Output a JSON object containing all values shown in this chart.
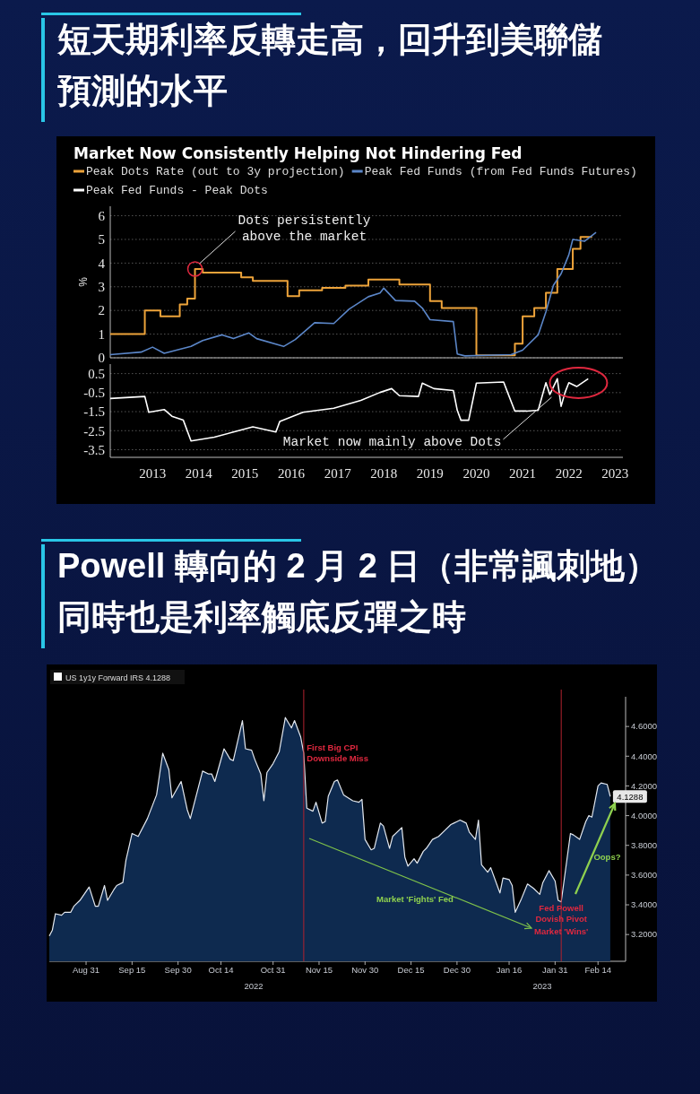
{
  "chart_data": [
    {
      "type": "step",
      "title": "短天期利率反轉走高，回升到美聯儲預測的水平",
      "subtitle": "Market Now Consistently Helping Not Hindering Fed",
      "ylabel": "%",
      "xlim": [
        "2012-08",
        "2023-09"
      ],
      "ylim": [
        0,
        6.4
      ],
      "yticks": [
        0,
        1,
        2,
        3,
        4,
        5,
        6
      ],
      "grid": "y",
      "legend": "top",
      "tick_labels": "y",
      "series": [
        {
          "name": "Peak Dots Rate (out to 3y projection)",
          "type": "step",
          "color": "#eda33a",
          "x": [
            "2012-08",
            "2013-05",
            "2013-09",
            "2014-02",
            "2014-04",
            "2014-06",
            "2014-08",
            "2015-06",
            "2015-09",
            "2016-06",
            "2016-09",
            "2017-03",
            "2017-09",
            "2018-03",
            "2018-11",
            "2019-07",
            "2019-10",
            "2020-07",
            "2021-05",
            "2021-07",
            "2021-10",
            "2022-01",
            "2022-04",
            "2022-08",
            "2022-10",
            "2023-01"
          ],
          "values": [
            1.0,
            2.0,
            1.75,
            2.25,
            2.5,
            3.75,
            3.6,
            3.4,
            3.25,
            2.6,
            2.85,
            2.95,
            3.05,
            3.3,
            3.1,
            2.4,
            2.1,
            0.1,
            0.6,
            1.75,
            2.1,
            2.75,
            3.75,
            4.6,
            5.1,
            5.1
          ]
        },
        {
          "name": "Peak Fed Funds (from Fed Funds Futures)",
          "type": "line",
          "color": "#5b86c8",
          "x": [
            "2012-08",
            "2013-04",
            "2013-07",
            "2013-10",
            "2014-05",
            "2014-08",
            "2015-01",
            "2015-04",
            "2015-08",
            "2015-10",
            "2016-05",
            "2016-08",
            "2017-01",
            "2017-06",
            "2017-10",
            "2018-03",
            "2018-06",
            "2018-07",
            "2018-10",
            "2019-03",
            "2019-05",
            "2019-07",
            "2020-01",
            "2020-02",
            "2020-04",
            "2021-04",
            "2021-07",
            "2021-11",
            "2022-01",
            "2022-03",
            "2022-05",
            "2022-07",
            "2022-08",
            "2022-11",
            "2023-02"
          ],
          "values": [
            0.13,
            0.24,
            0.45,
            0.19,
            0.48,
            0.73,
            0.97,
            0.81,
            1.05,
            0.81,
            0.48,
            0.77,
            1.48,
            1.45,
            2.06,
            2.58,
            2.74,
            2.94,
            2.42,
            2.39,
            2.1,
            1.61,
            1.53,
            0.16,
            0.08,
            0.13,
            0.32,
            0.97,
            1.94,
            3.06,
            3.55,
            4.35,
            5.0,
            4.92,
            5.3
          ]
        }
      ],
      "annotations": [
        {
          "text": "Dots persistently above the market",
          "x": "2014-06",
          "y": 3.75
        }
      ]
    },
    {
      "type": "line",
      "xlim": [
        "2012-08",
        "2023-09"
      ],
      "xticks": [
        {
          "value": "2013-07",
          "label": "2013"
        },
        {
          "value": "2014-07",
          "label": "2014"
        },
        {
          "value": "2015-07",
          "label": "2015"
        },
        {
          "value": "2016-07",
          "label": "2016"
        },
        {
          "value": "2017-07",
          "label": "2017"
        },
        {
          "value": "2018-07",
          "label": "2018"
        },
        {
          "value": "2019-07",
          "label": "2019"
        },
        {
          "value": "2020-07",
          "label": "2020"
        },
        {
          "value": "2021-07",
          "label": "2021"
        },
        {
          "value": "2022-07",
          "label": "2022"
        },
        {
          "value": "2023-07",
          "label": "2023"
        }
      ],
      "ylim": [
        -3.9,
        1.0
      ],
      "yticks": [
        0.5,
        -0.5,
        -1.5,
        -2.5,
        -3.5
      ],
      "grid": "y",
      "legend": "top",
      "series": [
        {
          "name": "Peak Fed Funds - Peak Dots",
          "color": "#ffffff",
          "x": [
            "2012-08",
            "2013-05",
            "2013-06",
            "2013-10",
            "2013-12",
            "2014-03",
            "2014-05",
            "2014-11",
            "2015-04",
            "2015-09",
            "2016-03",
            "2016-04",
            "2016-10",
            "2017-06",
            "2018-01",
            "2018-06",
            "2018-09",
            "2018-11",
            "2019-04",
            "2019-05",
            "2019-08",
            "2020-01",
            "2020-02",
            "2020-03",
            "2020-05",
            "2020-07",
            "2021-02",
            "2021-03",
            "2021-05",
            "2021-08",
            "2021-11",
            "2022-01",
            "2022-02",
            "2022-04",
            "2022-05",
            "2022-06",
            "2022-07",
            "2022-09",
            "2022-12"
          ],
          "values": [
            -0.81,
            -0.7,
            -1.53,
            -1.39,
            -1.74,
            -1.95,
            -3.04,
            -2.84,
            -2.57,
            -2.3,
            -2.57,
            -2.01,
            -1.53,
            -1.32,
            -0.91,
            -0.49,
            -0.29,
            -0.66,
            -0.7,
            0.0,
            -0.29,
            -0.39,
            -1.43,
            -1.95,
            -1.95,
            0.0,
            0.06,
            -0.43,
            -1.47,
            -1.47,
            -1.43,
            0.02,
            -0.6,
            0.23,
            -1.22,
            -0.49,
            0.02,
            -0.18,
            0.23
          ]
        }
      ],
      "annotations": [
        {
          "text": "Market now mainly above Dots",
          "x": "2022-03",
          "y": -0.6
        }
      ]
    },
    {
      "type": "area",
      "title": "Powell 轉向的 2 月 2 日（非常諷刺地）同時也是利率觸底反彈之時",
      "xlim": [
        "2022-08-19",
        "2023-02-23"
      ],
      "xticks": [
        {
          "value": "2022-08-31",
          "label": "Aug 31"
        },
        {
          "value": "2022-09-15",
          "label": "Sep 15"
        },
        {
          "value": "2022-09-30",
          "label": "Sep 30"
        },
        {
          "value": "2022-10-14",
          "label": "Oct 14"
        },
        {
          "value": "2022-10-31",
          "label": "Oct 31"
        },
        {
          "value": "2022-11-15",
          "label": "Nov 15"
        },
        {
          "value": "2022-11-30",
          "label": "Nov 30"
        },
        {
          "value": "2022-12-15",
          "label": "Dec 15"
        },
        {
          "value": "2022-12-30",
          "label": "Dec 30"
        },
        {
          "value": "2023-01-16",
          "label": "Jan 16"
        },
        {
          "value": "2023-01-31",
          "label": "Jan 31"
        },
        {
          "value": "2023-02-14",
          "label": "Feb 14"
        }
      ],
      "ylim": [
        3.02,
        4.8
      ],
      "yticks": [
        {
          "value": 3.2,
          "label": "3.2000"
        },
        {
          "value": 3.4,
          "label": "3.4000"
        },
        {
          "value": 3.6,
          "label": "3.6000"
        },
        {
          "value": 3.8,
          "label": "3.8000"
        },
        {
          "value": 4.0,
          "label": "4.0000"
        },
        {
          "value": 4.2,
          "label": "4.2000"
        },
        {
          "value": 4.4,
          "label": "4.4000"
        },
        {
          "value": 4.6,
          "label": "4.6000"
        }
      ],
      "legend": "top left",
      "series": [
        {
          "name": "US 1y1y Forward IRS 4.1288",
          "color": "#0e2a4f",
          "x": [
            "2022-08-19",
            "2022-08-20",
            "2022-08-21",
            "2022-08-23",
            "2022-08-24",
            "2022-08-26",
            "2022-08-27",
            "2022-08-29",
            "2022-08-31",
            "2022-09-01",
            "2022-09-03",
            "2022-09-04",
            "2022-09-06",
            "2022-09-07",
            "2022-09-09",
            "2022-09-10",
            "2022-09-12",
            "2022-09-13",
            "2022-09-15",
            "2022-09-17",
            "2022-09-20",
            "2022-09-23",
            "2022-09-25",
            "2022-09-27",
            "2022-09-28",
            "2022-10-01",
            "2022-10-03",
            "2022-10-04",
            "2022-10-08",
            "2022-10-10",
            "2022-10-11",
            "2022-10-12",
            "2022-10-15",
            "2022-10-17",
            "2022-10-18",
            "2022-10-21",
            "2022-10-22",
            "2022-10-24",
            "2022-10-25",
            "2022-10-27",
            "2022-10-28",
            "2022-10-29",
            "2022-10-31",
            "2022-11-02",
            "2022-11-04",
            "2022-11-06",
            "2022-11-07",
            "2022-11-09",
            "2022-11-10",
            "2022-11-11",
            "2022-11-13",
            "2022-11-14",
            "2022-11-16",
            "2022-11-17",
            "2022-11-18",
            "2022-11-20",
            "2022-11-21",
            "2022-11-23",
            "2022-11-26",
            "2022-11-28",
            "2022-11-29",
            "2022-11-30",
            "2022-12-02",
            "2022-12-03",
            "2022-12-05",
            "2022-12-06",
            "2022-12-08",
            "2022-12-09",
            "2022-12-12",
            "2022-12-13",
            "2022-12-14",
            "2022-12-16",
            "2022-12-17",
            "2022-12-19",
            "2022-12-20",
            "2022-12-22",
            "2022-12-24",
            "2022-12-26",
            "2022-12-28",
            "2022-12-29",
            "2022-12-30",
            "2022-12-31",
            "2023-01-02",
            "2023-01-03",
            "2023-01-05",
            "2023-01-06",
            "2023-01-07",
            "2023-01-09",
            "2023-01-10",
            "2023-01-13",
            "2023-01-14",
            "2023-01-16",
            "2023-01-17",
            "2023-01-18",
            "2023-01-20",
            "2023-01-22",
            "2023-01-24",
            "2023-01-26",
            "2023-01-27",
            "2023-01-29",
            "2023-01-31",
            "2023-02-01",
            "2023-02-02",
            "2023-02-05",
            "2023-02-06",
            "2023-02-08",
            "2023-02-10",
            "2023-02-11",
            "2023-02-12",
            "2023-02-14",
            "2023-02-15",
            "2023-02-17",
            "2023-02-18"
          ],
          "values": [
            3.19,
            3.23,
            3.34,
            3.33,
            3.35,
            3.35,
            3.39,
            3.43,
            3.49,
            3.52,
            3.39,
            3.39,
            3.53,
            3.43,
            3.5,
            3.53,
            3.55,
            3.7,
            3.88,
            3.86,
            3.98,
            4.14,
            4.42,
            4.31,
            4.12,
            4.23,
            4.04,
            3.98,
            4.3,
            4.28,
            4.28,
            4.23,
            4.45,
            4.38,
            4.37,
            4.64,
            4.45,
            4.44,
            4.38,
            4.28,
            4.1,
            4.29,
            4.35,
            4.43,
            4.66,
            4.59,
            4.64,
            4.53,
            4.42,
            4.05,
            4.03,
            4.09,
            3.95,
            3.96,
            4.13,
            4.23,
            4.24,
            4.14,
            4.1,
            4.09,
            4.11,
            3.84,
            3.77,
            3.78,
            3.95,
            3.93,
            3.78,
            3.86,
            3.92,
            3.72,
            3.66,
            3.71,
            3.68,
            3.76,
            3.78,
            3.84,
            3.86,
            3.9,
            3.94,
            3.95,
            3.96,
            3.97,
            3.95,
            3.89,
            3.84,
            3.97,
            3.67,
            3.62,
            3.65,
            3.48,
            3.58,
            3.57,
            3.53,
            3.35,
            3.44,
            3.54,
            3.51,
            3.47,
            3.55,
            3.63,
            3.56,
            3.43,
            3.42,
            3.88,
            3.87,
            3.84,
            3.96,
            4.0,
            3.99,
            4.2,
            4.22,
            4.21,
            4.1288
          ],
          "value_labels": [
            null,
            null,
            null,
            null,
            null,
            null,
            null,
            null,
            null,
            null,
            null,
            null,
            null,
            null,
            null,
            null,
            null,
            null,
            null,
            null,
            null,
            null,
            null,
            null,
            null,
            null,
            null,
            null,
            null,
            null,
            null,
            null,
            null,
            null,
            null,
            null,
            null,
            null,
            null,
            null,
            null,
            null,
            null,
            null,
            null,
            null,
            null,
            null,
            null,
            null,
            null,
            null,
            null,
            null,
            null,
            null,
            null,
            null,
            null,
            null,
            null,
            null,
            null,
            null,
            null,
            null,
            null,
            null,
            null,
            null,
            null,
            null,
            null,
            null,
            null,
            null,
            null,
            null,
            null,
            null,
            null,
            null,
            null,
            null,
            null,
            null,
            null,
            null,
            null,
            null,
            null,
            null,
            null,
            null,
            null,
            null,
            null,
            null,
            null,
            null,
            null,
            null,
            null,
            null,
            null,
            null,
            null,
            null,
            null,
            null,
            null,
            null,
            "4.1288"
          ]
        }
      ],
      "ref_lines": [
        {
          "axis": "x",
          "value": "2022-11-10",
          "color": "#b3232f"
        },
        {
          "axis": "x",
          "value": "2023-02-02",
          "color": "#b3232f"
        }
      ],
      "annotations": [
        {
          "text": "First Big CPI Downside Miss",
          "x": "2022-11-11",
          "y": 4.44
        },
        "Market 'Fights' Fed",
        {
          "text": "Fed Powell Dovish Pivot",
          "x": "2023-02-02",
          "y": 3.36
        },
        {
          "text": "Market 'Wins'",
          "x": "2023-02-02",
          "y": 3.2
        },
        {
          "text": "Oops?",
          "x": "2023-02-17",
          "y": 3.7
        },
        "2022",
        "2023"
      ]
    }
  ]
}
